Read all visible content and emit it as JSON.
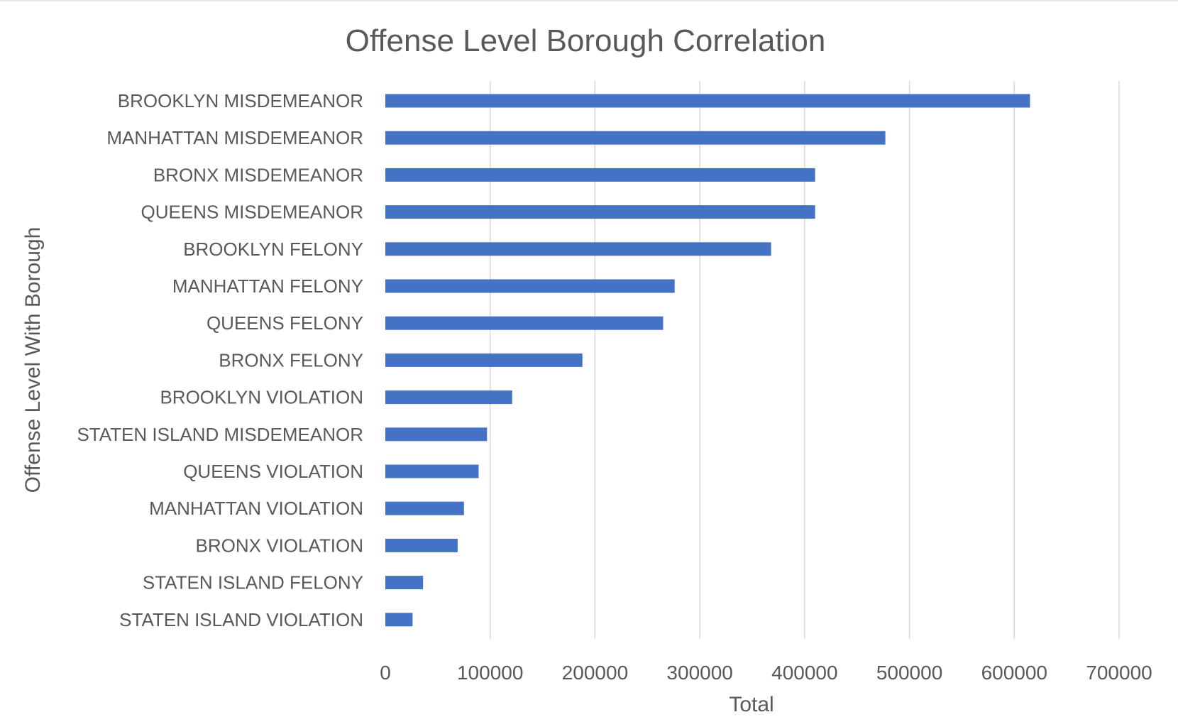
{
  "chart_data": {
    "type": "bar",
    "orientation": "horizontal",
    "title": "Offense Level Borough Correlation",
    "xlabel": "Total",
    "ylabel": "Offense Level With Borough",
    "xlim": [
      0,
      700000
    ],
    "xticks": [
      "0",
      "100000",
      "200000",
      "300000",
      "400000",
      "500000",
      "600000",
      "700000"
    ],
    "grid": true,
    "bar_color": "#4472C4",
    "categories": [
      "BROOKLYN MISDEMEANOR",
      "MANHATTAN MISDEMEANOR",
      "BRONX MISDEMEANOR",
      "QUEENS MISDEMEANOR",
      "BROOKLYN FELONY",
      "MANHATTAN FELONY",
      "QUEENS FELONY",
      "BRONX FELONY",
      "BROOKLYN VIOLATION",
      "STATEN ISLAND MISDEMEANOR",
      "QUEENS VIOLATION",
      "MANHATTAN VIOLATION",
      "BRONX VIOLATION",
      "STATEN ISLAND FELONY",
      "STATEN ISLAND VIOLATION"
    ],
    "values": [
      615000,
      477000,
      410000,
      410000,
      368000,
      276000,
      265000,
      188000,
      121000,
      97000,
      89000,
      75000,
      69000,
      36000,
      26000
    ]
  }
}
